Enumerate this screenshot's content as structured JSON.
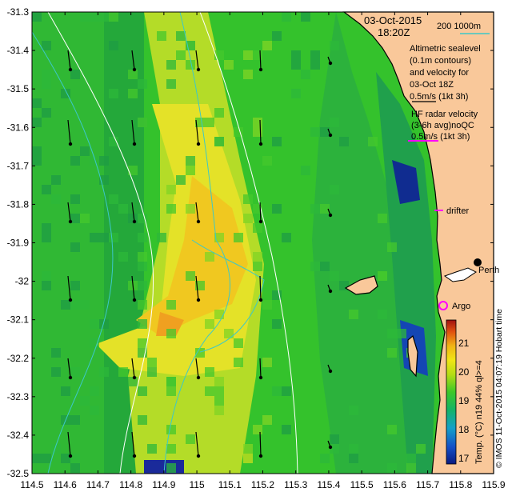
{
  "map": {
    "date": "03-Oct-2015",
    "time": "18:20Z",
    "isobath_legend": "200  1000m",
    "altimetry_lines": [
      "Altimetric sealevel",
      "(0.1m contours)",
      "and velocity for",
      "03-Oct 18Z",
      "0.5m/s (1kt 3h)"
    ],
    "hf_radar_lines": [
      "HF radar velocity",
      "(3-6h avg)noQC",
      "0.5m/s (1kt 3h)"
    ],
    "drifter_label": "drifter",
    "argo_label": "Argo",
    "city_label": "Perth",
    "colorbar_title": "Temp. (°C) n19 44% ql>=4",
    "credit": "© IMOS 11-Oct-2015 04:07:19 Hobart time",
    "lon_ticks": [
      "114.5",
      "114.6",
      "114.7",
      "114.8",
      "114.9",
      "115",
      "115.1",
      "115.2",
      "115.3",
      "115.4",
      "115.5",
      "115.6",
      "115.7",
      "115.8",
      "115.9"
    ],
    "lat_ticks": [
      "-31.3",
      "-31.4",
      "-31.5",
      "-31.6",
      "-31.7",
      "-31.8",
      "-31.9",
      "-32",
      "-32.1",
      "-32.2",
      "-32.3",
      "-32.4",
      "-32.5"
    ],
    "colorbar_ticks": [
      "17",
      "18",
      "19",
      "20",
      "21"
    ],
    "colors": {
      "land": "#f9c89a",
      "isobath": "#3cc8c8",
      "sealevel_contour": "#ffffff",
      "hf_radar": "#ff00ff"
    }
  }
}
